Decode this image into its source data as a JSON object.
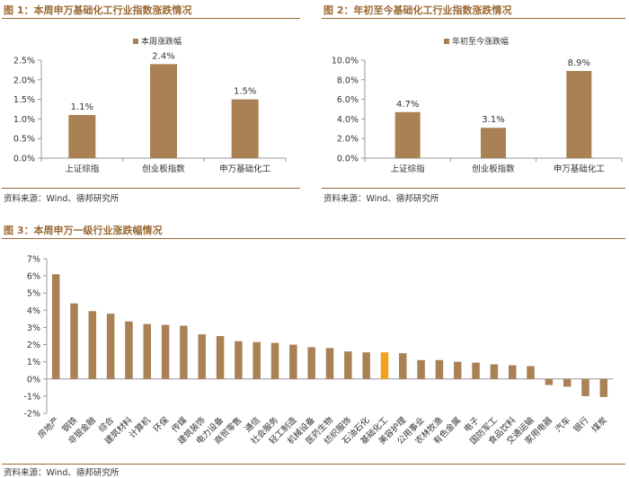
{
  "colors": {
    "bar": "#a98155",
    "highlight": "#f5a01a",
    "title": "#9a6a33",
    "axis": "#999999"
  },
  "sources": {
    "fig1": "资料来源：Wind、德邦研究所",
    "fig2": "资料来源：Wind、德邦研究所",
    "fig3": "资料来源：Wind、德邦研究所"
  },
  "chart_data": [
    {
      "type": "bar",
      "title": "图 1：本周申万基础化工行业指数涨跌情况",
      "legend": [
        "本周涨跌幅"
      ],
      "legend_position": "top-right",
      "categories": [
        "上证综指",
        "创业板指数",
        "申万基础化工"
      ],
      "values": [
        1.1,
        2.4,
        1.5
      ],
      "data_labels": [
        "1.1%",
        "2.4%",
        "1.5%"
      ],
      "ylim": [
        0,
        2.5
      ],
      "yticks": [
        "0.0%",
        "0.5%",
        "1.0%",
        "1.5%",
        "2.0%",
        "2.5%"
      ],
      "grid": false
    },
    {
      "type": "bar",
      "title": "图 2：年初至今基础化工行业指数涨跌情况",
      "legend": [
        "年初至今涨跌幅"
      ],
      "legend_position": "top-center",
      "categories": [
        "上证综指",
        "创业板指数",
        "申万基础化工"
      ],
      "values": [
        4.7,
        3.1,
        8.9
      ],
      "data_labels": [
        "4.7%",
        "3.1%",
        "8.9%"
      ],
      "ylim": [
        0,
        10
      ],
      "yticks": [
        "0.0%",
        "2.0%",
        "4.0%",
        "6.0%",
        "8.0%",
        "10.0%"
      ],
      "grid": false
    },
    {
      "type": "bar",
      "title": "图 3：本周申万一级行业涨跌幅情况",
      "categories": [
        "房地产",
        "钢铁",
        "非银金融",
        "综合",
        "建筑材料",
        "计算机",
        "环保",
        "传媒",
        "建筑装饰",
        "电力设备",
        "商贸零售",
        "通信",
        "社会服务",
        "轻工制造",
        "机械设备",
        "医药生物",
        "纺织服饰",
        "石油石化",
        "基础化工",
        "美容护理",
        "公用事业",
        "农林牧渔",
        "有色金属",
        "电子",
        "国防军工",
        "食品饮料",
        "交通运输",
        "家用电器",
        "汽车",
        "银行",
        "煤炭"
      ],
      "values": [
        6.1,
        4.4,
        3.95,
        3.8,
        3.35,
        3.2,
        3.15,
        3.1,
        2.6,
        2.5,
        2.2,
        2.15,
        2.1,
        2.0,
        1.85,
        1.8,
        1.6,
        1.55,
        1.55,
        1.5,
        1.1,
        1.1,
        1.0,
        0.95,
        0.85,
        0.8,
        0.75,
        -0.35,
        -0.45,
        -1.0,
        -1.05
      ],
      "highlight_category": "基础化工",
      "ylim": [
        -2,
        7
      ],
      "yticks": [
        "-2%",
        "-1%",
        "0%",
        "1%",
        "2%",
        "3%",
        "4%",
        "5%",
        "6%",
        "7%"
      ],
      "grid": false
    }
  ]
}
